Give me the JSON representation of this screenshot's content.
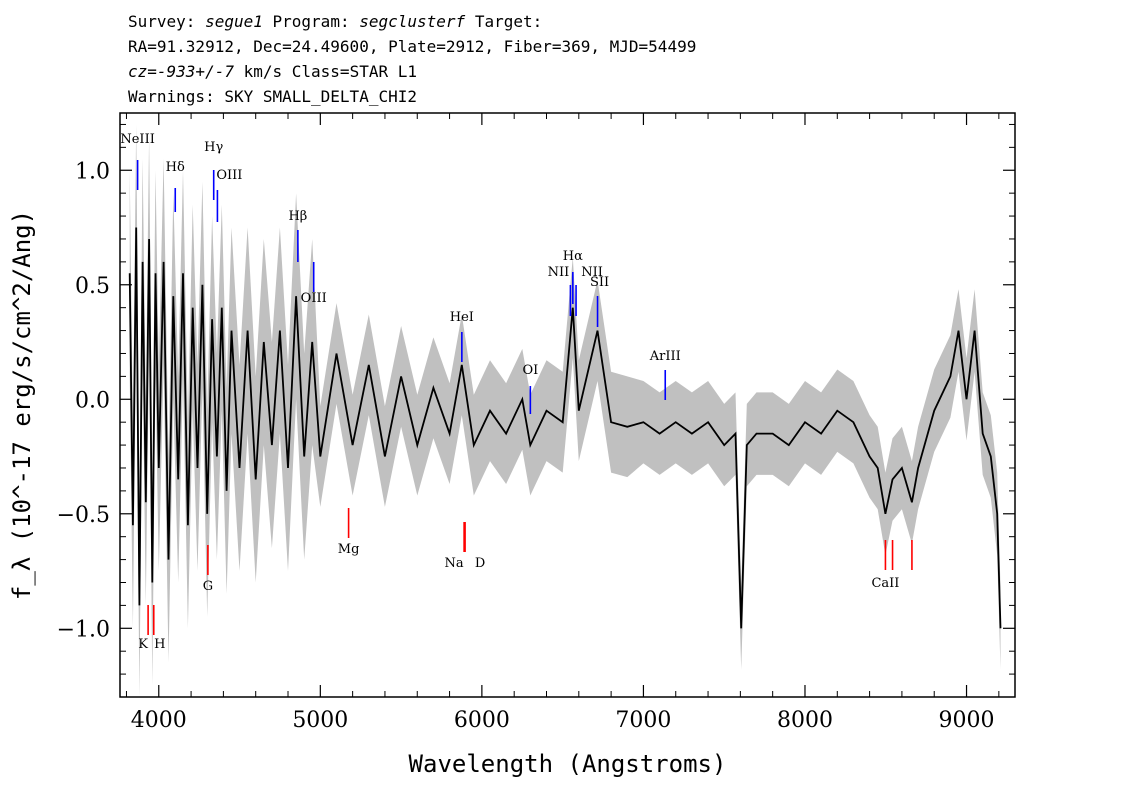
{
  "header": {
    "survey_label": "Survey:",
    "survey": "segue1",
    "program_label": "Program:",
    "program": "segclusterf",
    "target_label": "Target:",
    "line2": "RA=91.32912, Dec=24.49600, Plate=2912, Fiber=369, MJD=54499",
    "cz": "cz=-933+/-7",
    "cz_rest": " km/s Class=STAR L1",
    "line4": "Warnings: SKY SMALL_DELTA_CHI2"
  },
  "chart_data": {
    "type": "line",
    "xlabel": "Wavelength (Angstroms)",
    "ylabel": "f_λ (10^-17 erg/s/cm^2/Ang)",
    "xlim": [
      3760,
      9300
    ],
    "ylim": [
      -1.3,
      1.25
    ],
    "x_ticks": [
      4000,
      5000,
      6000,
      7000,
      8000,
      9000
    ],
    "x_tick_labels": [
      "4000",
      "5000",
      "6000",
      "7000",
      "8000",
      "9000"
    ],
    "y_ticks": [
      -1.0,
      -0.5,
      0.0,
      0.5,
      1.0
    ],
    "y_tick_labels": [
      "−1.0",
      "−0.5",
      "0.0",
      "0.5",
      "1.0"
    ],
    "series": [
      {
        "color": "#000000",
        "x": [
          3820,
          3840,
          3860,
          3880,
          3900,
          3920,
          3940,
          3960,
          3980,
          4000,
          4030,
          4060,
          4090,
          4120,
          4150,
          4180,
          4210,
          4240,
          4270,
          4300,
          4330,
          4360,
          4390,
          4420,
          4450,
          4500,
          4550,
          4600,
          4650,
          4700,
          4750,
          4800,
          4850,
          4900,
          4950,
          5000,
          5100,
          5200,
          5300,
          5400,
          5500,
          5600,
          5700,
          5800,
          5876,
          5950,
          6050,
          6150,
          6250,
          6300,
          6400,
          6500,
          6563,
          6600,
          6716,
          6800,
          6900,
          7000,
          7100,
          7200,
          7300,
          7400,
          7500,
          7570,
          7605,
          7640,
          7700,
          7800,
          7900,
          8000,
          8100,
          8200,
          8300,
          8400,
          8450,
          8498,
          8542,
          8600,
          8662,
          8700,
          8800,
          8900,
          8950,
          9000,
          9050,
          9100,
          9150,
          9190,
          9210
        ],
        "y": [
          0.55,
          -0.55,
          0.75,
          -0.9,
          0.6,
          -0.45,
          0.7,
          -0.8,
          0.55,
          -0.3,
          0.6,
          -0.7,
          0.45,
          -0.35,
          0.55,
          -0.55,
          0.4,
          -0.3,
          0.5,
          -0.5,
          0.35,
          -0.25,
          0.4,
          -0.4,
          0.3,
          -0.3,
          0.3,
          -0.35,
          0.25,
          -0.2,
          0.3,
          -0.3,
          0.45,
          -0.25,
          0.25,
          -0.25,
          0.2,
          -0.2,
          0.15,
          -0.25,
          0.1,
          -0.2,
          0.05,
          -0.15,
          0.15,
          -0.2,
          -0.05,
          -0.15,
          0.0,
          -0.2,
          -0.05,
          -0.1,
          0.4,
          -0.05,
          0.3,
          -0.1,
          -0.12,
          -0.1,
          -0.15,
          -0.1,
          -0.15,
          -0.1,
          -0.2,
          -0.15,
          -1.0,
          -0.2,
          -0.15,
          -0.15,
          -0.2,
          -0.1,
          -0.15,
          -0.05,
          -0.1,
          -0.25,
          -0.3,
          -0.5,
          -0.35,
          -0.3,
          -0.45,
          -0.3,
          -0.05,
          0.1,
          0.3,
          0.0,
          0.3,
          -0.15,
          -0.25,
          -0.5,
          -1.0
        ]
      }
    ],
    "lines_emission": [
      {
        "name": "NeIII",
        "wave": 3869,
        "color": "blue"
      },
      {
        "name": "Hδ",
        "wave": 4102,
        "color": "blue"
      },
      {
        "name": "Hγ",
        "wave": 4340,
        "color": "blue"
      },
      {
        "name": "OIII",
        "wave": 4363,
        "color": "blue"
      },
      {
        "name": "Hβ",
        "wave": 4861,
        "color": "blue"
      },
      {
        "name": "OIII",
        "wave": 4959,
        "color": "blue"
      },
      {
        "name": "HeI",
        "wave": 5876,
        "color": "blue"
      },
      {
        "name": "OI",
        "wave": 6300,
        "color": "blue"
      },
      {
        "name": "NII",
        "wave": 6548,
        "color": "blue"
      },
      {
        "name": "Hα",
        "wave": 6563,
        "color": "blue"
      },
      {
        "name": "NII",
        "wave": 6583,
        "color": "blue"
      },
      {
        "name": "SII",
        "wave": 6716,
        "color": "blue"
      },
      {
        "name": "ArIII",
        "wave": 7135,
        "color": "blue"
      }
    ],
    "lines_absorption": [
      {
        "name": "K",
        "wave": 3934,
        "color": "red"
      },
      {
        "name": "H",
        "wave": 3969,
        "color": "red"
      },
      {
        "name": "G",
        "wave": 4304,
        "color": "red"
      },
      {
        "name": "Mg",
        "wave": 5175,
        "color": "red"
      },
      {
        "name": "Na",
        "wave": 5890,
        "color": "red"
      },
      {
        "name": "D",
        "wave": 5896,
        "color": "red"
      },
      {
        "name": "CaII",
        "wave": 8498,
        "color": "red"
      }
    ],
    "colors": {
      "spectrum": "#000000",
      "error": "#c0c0c0",
      "emission": "#0000ff",
      "absorption": "#ff0000"
    }
  }
}
